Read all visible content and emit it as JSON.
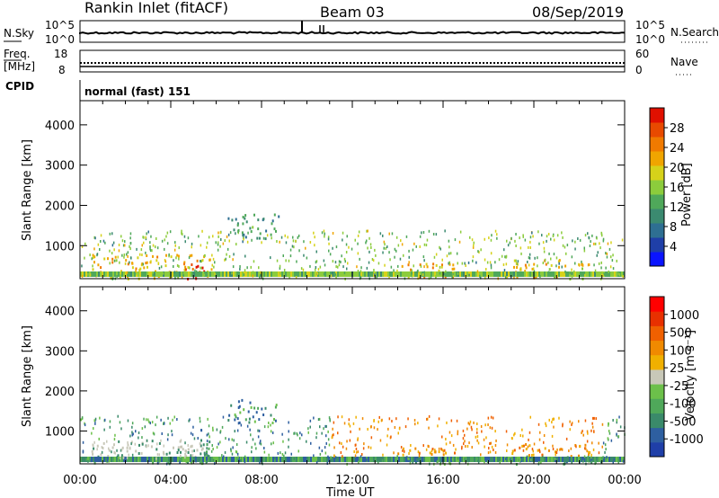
{
  "header": {
    "station": "Rankin Inlet (fitACF)",
    "beam": "Beam 03",
    "date": "08/Sep/2019"
  },
  "top_panels": {
    "nsky": {
      "label": "N.Sky",
      "ticks": [
        "10^5",
        "10^0"
      ],
      "right_label": "N.Search",
      "right_ticks": [
        "10^5",
        "10^0"
      ]
    },
    "freq": {
      "label_top": "Freq.",
      "label_bottom": "[MHz]",
      "ticks": [
        "18",
        "8"
      ],
      "right_label": "Nave",
      "right_ticks": [
        "60",
        "0"
      ]
    },
    "cpid": {
      "label": "CPID",
      "value": "normal (fast) 151"
    }
  },
  "chart_data": [
    {
      "type": "heatmap",
      "title": "",
      "xlabel": "Time UT",
      "ylabel": "Slant Range [km]",
      "x_range_hours": [
        0,
        24
      ],
      "ylim": [
        180,
        4600
      ],
      "xticks": [
        "00:00",
        "04:00",
        "08:00",
        "12:00",
        "16:00",
        "20:00",
        "00:00"
      ],
      "yticks": [
        1000,
        2000,
        3000,
        4000
      ],
      "colorbar": {
        "label": "Power [dB]",
        "tick_labels": [
          "4",
          "8",
          "12",
          "16",
          "20",
          "24",
          "28"
        ],
        "range": [
          0,
          30
        ],
        "colors": [
          "#0a14ff",
          "#1f3fa8",
          "#2e6f92",
          "#3b8a70",
          "#4fa85a",
          "#8ccc3c",
          "#d6d21a",
          "#f0a500",
          "#f07a00",
          "#e84a00",
          "#e01000"
        ]
      },
      "description_clusters": [
        {
          "t": [
            0.3,
            5.8
          ],
          "range": [
            200,
            800
          ],
          "power": 20
        },
        {
          "t": [
            4.5,
            5.8
          ],
          "range": [
            200,
            600
          ],
          "power": 28
        },
        {
          "t": [
            6.5,
            8.8
          ],
          "range": [
            1200,
            1800
          ],
          "power": 10
        },
        {
          "t": [
            13.8,
            16.5
          ],
          "range": [
            200,
            600
          ],
          "power": 22
        },
        {
          "t": [
            19.0,
            22.5
          ],
          "range": [
            200,
            700
          ],
          "power": 20
        }
      ]
    },
    {
      "type": "heatmap",
      "title": "",
      "xlabel": "Time UT",
      "ylabel": "Slant Range [km]",
      "x_range_hours": [
        0,
        24
      ],
      "ylim": [
        180,
        4600
      ],
      "xticks": [
        "00:00",
        "04:00",
        "08:00",
        "12:00",
        "16:00",
        "20:00",
        "00:00"
      ],
      "yticks": [
        1000,
        2000,
        3000,
        4000
      ],
      "colorbar": {
        "label": "Velocity [m s⁻¹]",
        "tick_labels": [
          "1000",
          "500",
          "100",
          "25",
          "-25",
          "-100",
          "-500",
          "-1000"
        ],
        "colors": [
          "#1f3fa8",
          "#2e5fa0",
          "#3a8a6a",
          "#4fa85a",
          "#6cc04a",
          "#c8c8b8",
          "#f0b000",
          "#f08a00",
          "#f06000",
          "#e83000",
          "#ff0000"
        ]
      }
    }
  ],
  "colors": {
    "axis": "#000000",
    "background": "#ffffff"
  }
}
